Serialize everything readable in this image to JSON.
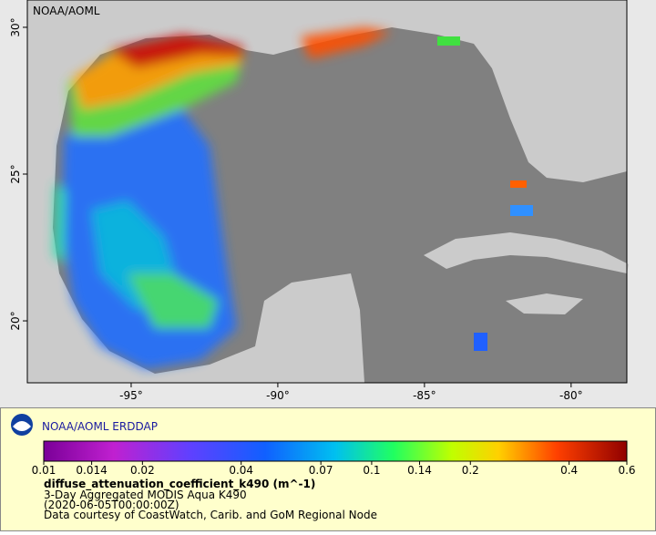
{
  "map": {
    "corner_label": "NOAA/AOML",
    "xlim": [
      -98.54,
      -78.1
    ],
    "ylim": [
      17.89,
      30.93
    ],
    "xticks": [
      {
        "value": -95,
        "label": "-95°"
      },
      {
        "value": -90,
        "label": "-90°"
      },
      {
        "value": -85,
        "label": "-85°"
      },
      {
        "value": -80,
        "label": "-80°"
      }
    ],
    "yticks": [
      {
        "value": 30,
        "label": "30°"
      },
      {
        "value": 25,
        "label": "25°"
      },
      {
        "value": 20,
        "label": "20°"
      }
    ]
  },
  "footer": {
    "brand": "NOAA/AOML ERDDAP",
    "variable": "diffuse_attenuation_coefficient_k490 (m^-1)",
    "lines": [
      "3-Day Aggregated MODIS Aqua K490",
      "(2020-06-05T00:00:00Z)",
      "Data courtesy of CoastWatch, Carib. and GoM Regional Node"
    ]
  },
  "colorbar": {
    "log": true,
    "lim": [
      0.01,
      0.6
    ],
    "ticks": [
      0.01,
      0.014,
      0.02,
      0.04,
      0.07,
      0.1,
      0.14,
      0.2,
      0.4,
      0.6
    ]
  }
}
